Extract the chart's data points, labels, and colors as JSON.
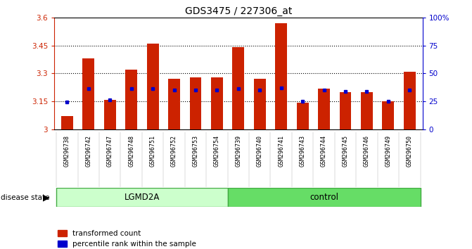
{
  "title": "GDS3475 / 227306_at",
  "samples": [
    "GSM296738",
    "GSM296742",
    "GSM296747",
    "GSM296748",
    "GSM296751",
    "GSM296752",
    "GSM296753",
    "GSM296754",
    "GSM296739",
    "GSM296740",
    "GSM296741",
    "GSM296743",
    "GSM296744",
    "GSM296745",
    "GSM296746",
    "GSM296749",
    "GSM296750"
  ],
  "bar_values": [
    3.07,
    3.38,
    3.16,
    3.32,
    3.46,
    3.27,
    3.28,
    3.28,
    3.44,
    3.27,
    3.57,
    3.145,
    3.22,
    3.2,
    3.2,
    3.15,
    3.31
  ],
  "percentile_values": [
    3.148,
    3.218,
    3.158,
    3.218,
    3.218,
    3.21,
    3.21,
    3.21,
    3.218,
    3.21,
    3.222,
    3.152,
    3.21,
    3.205,
    3.205,
    3.152,
    3.21
  ],
  "ymin": 3.0,
  "ymax": 3.6,
  "yticks": [
    3.0,
    3.15,
    3.3,
    3.45,
    3.6
  ],
  "ytick_labels": [
    "3",
    "3.15",
    "3.3",
    "3.45",
    "3.6"
  ],
  "right_yticks": [
    0,
    25,
    50,
    75,
    100
  ],
  "right_ytick_labels": [
    "0",
    "25",
    "50",
    "75",
    "100%"
  ],
  "bar_color": "#cc2200",
  "dot_color": "#0000cc",
  "left_axis_color": "#cc2200",
  "right_axis_color": "#0000cc",
  "lgmd_color": "#ccffcc",
  "ctrl_color": "#66dd66",
  "xtick_bg": "#d0d0d0",
  "n_lgmd": 8,
  "n_ctrl": 9
}
